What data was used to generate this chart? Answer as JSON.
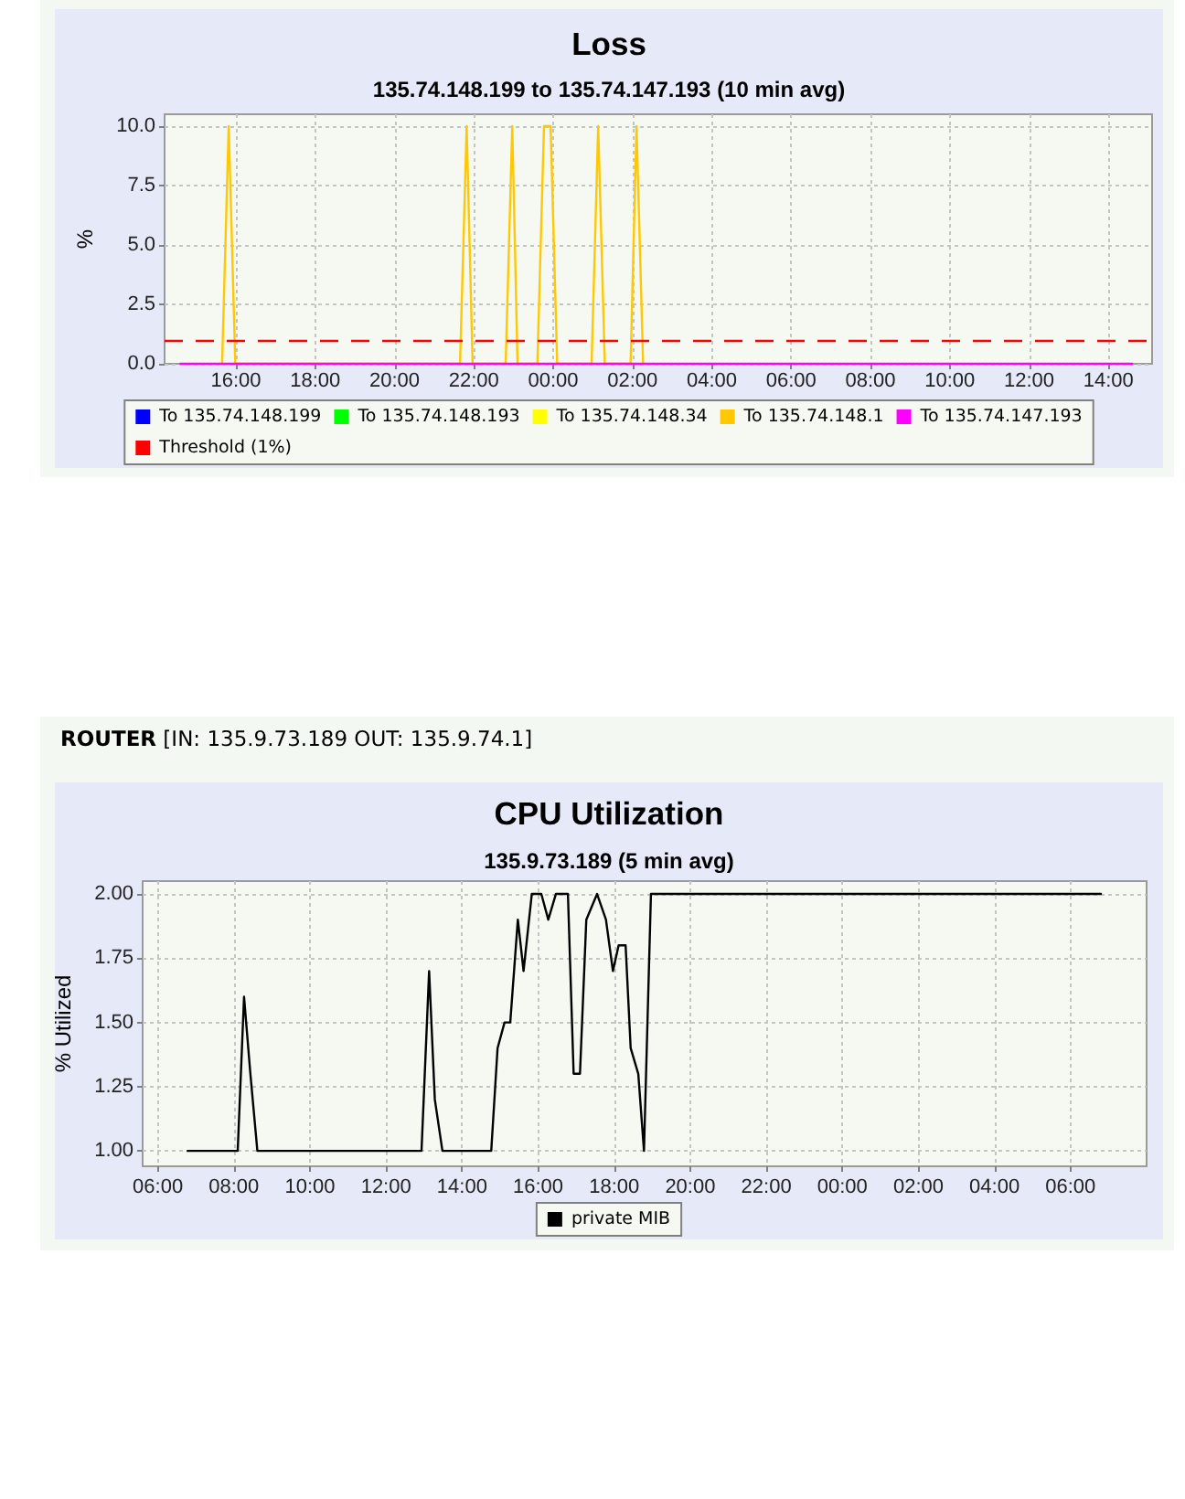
{
  "chart_data": [
    {
      "type": "line",
      "title": "Loss",
      "subtitle": "135.74.148.199 to 135.74.147.193 (10 min avg)",
      "ylabel": "%",
      "xlim": [
        "--01-01T14:12",
        "--01-02T15:06"
      ],
      "xticks": [
        {
          "value": "--01-01T16:00",
          "label": "16:00"
        },
        {
          "value": "--01-01T18:00",
          "label": "18:00"
        },
        {
          "value": "--01-01T20:00",
          "label": "20:00"
        },
        {
          "value": "--01-01T22:00",
          "label": "22:00"
        },
        {
          "value": "--01-02T00:00",
          "label": "00:00"
        },
        {
          "value": "--01-02T02:00",
          "label": "02:00"
        },
        {
          "value": "--01-02T04:00",
          "label": "04:00"
        },
        {
          "value": "--01-02T06:00",
          "label": "06:00"
        },
        {
          "value": "--01-02T08:00",
          "label": "08:00"
        },
        {
          "value": "--01-02T10:00",
          "label": "10:00"
        },
        {
          "value": "--01-02T12:00",
          "label": "12:00"
        },
        {
          "value": "--01-02T14:00",
          "label": "14:00"
        }
      ],
      "ylim": [
        0,
        10.5
      ],
      "yticks": [
        {
          "value": 0,
          "label": "0.0"
        },
        {
          "value": 2.5,
          "label": "2.5"
        },
        {
          "value": 5,
          "label": "5.0"
        },
        {
          "value": 7.5,
          "label": "7.5"
        },
        {
          "value": 10,
          "label": "10.0"
        }
      ],
      "series": [
        {
          "name": "To 135.74.148.199",
          "color": "#0000ff"
        },
        {
          "name": "To 135.74.148.193",
          "color": "#00ff00"
        },
        {
          "name": "To 135.74.148.34",
          "color": "#ffff00"
        },
        {
          "name": "To 135.74.148.1",
          "color": "#ffc800",
          "x": [
            "--01-01T15:39",
            "--01-01T15:49",
            "--01-01T15:59",
            "--01-01T21:39",
            "--01-01T21:49",
            "--01-01T21:58",
            "--01-01T22:48",
            "--01-01T22:58",
            "--01-01T23:06",
            "--01-01T23:36",
            "--01-01T23:46",
            "--01-01T23:56",
            "--01-02T00:06",
            "--01-02T00:58",
            "--01-02T01:08",
            "--01-02T01:18",
            "--01-02T01:57",
            "--01-02T02:06",
            "--01-02T02:16"
          ],
          "values": [
            0,
            10,
            0,
            0,
            10,
            0,
            0,
            10,
            0,
            0,
            10,
            10,
            0,
            0,
            10,
            0,
            0,
            10,
            0
          ]
        },
        {
          "name": "To 135.74.147.193",
          "color": "#ff00ff",
          "x": [
            "--01-01T14:36",
            "--01-02T14:36"
          ],
          "values": [
            0,
            0
          ]
        }
      ],
      "ref_lines": [
        {
          "axis": "y",
          "value": 1,
          "label": "Threshold (1%)",
          "color": "#ff0000",
          "line_style": "dashed"
        }
      ],
      "grid": true,
      "legend": "bottom",
      "marker": "none",
      "line_style": "solid"
    },
    {
      "type": "line",
      "title": "CPU Utilization",
      "subtitle": "135.9.73.189 (5 min avg)",
      "ylabel": "% Utilized",
      "annotations": [
        "ROUTER [IN: 135.9.73.189 OUT: 135.9.74.1]"
      ],
      "xlim": [
        "--01-01T05:36",
        "--01-02T08:00"
      ],
      "xticks": [
        {
          "value": "--01-01T06:00",
          "label": "06:00"
        },
        {
          "value": "--01-01T08:00",
          "label": "08:00"
        },
        {
          "value": "--01-01T10:00",
          "label": "10:00"
        },
        {
          "value": "--01-01T12:00",
          "label": "12:00"
        },
        {
          "value": "--01-01T14:00",
          "label": "14:00"
        },
        {
          "value": "--01-01T16:00",
          "label": "16:00"
        },
        {
          "value": "--01-01T18:00",
          "label": "18:00"
        },
        {
          "value": "--01-01T20:00",
          "label": "20:00"
        },
        {
          "value": "--01-01T22:00",
          "label": "22:00"
        },
        {
          "value": "--01-02T00:00",
          "label": "00:00"
        },
        {
          "value": "--01-02T02:00",
          "label": "02:00"
        },
        {
          "value": "--01-02T04:00",
          "label": "04:00"
        },
        {
          "value": "--01-02T06:00",
          "label": "06:00"
        }
      ],
      "ylim": [
        0.94,
        2.05
      ],
      "yticks": [
        {
          "value": 1,
          "label": "1.00"
        },
        {
          "value": 1.25,
          "label": "1.25"
        },
        {
          "value": 1.5,
          "label": "1.50"
        },
        {
          "value": 1.75,
          "label": "1.75"
        },
        {
          "value": 2,
          "label": "2.00"
        }
      ],
      "series": [
        {
          "name": "private MIB",
          "color": "#000000",
          "x": [
            "--01-01T06:47",
            "--01-01T08:06",
            "--01-01T08:16",
            "--01-01T08:26",
            "--01-01T08:37",
            "--01-01T12:56",
            "--01-01T13:08",
            "--01-01T13:17",
            "--01-01T13:29",
            "--01-01T14:46",
            "--01-01T14:56",
            "--01-01T15:07",
            "--01-01T15:16",
            "--01-01T15:28",
            "--01-01T15:37",
            "--01-01T15:50",
            "--01-01T16:05",
            "--01-01T16:16",
            "--01-01T16:28",
            "--01-01T16:47",
            "--01-01T16:56",
            "--01-01T17:06",
            "--01-01T17:16",
            "--01-01T17:33",
            "--01-01T17:47",
            "--01-01T17:58",
            "--01-01T18:07",
            "--01-01T18:18",
            "--01-01T18:26",
            "--01-01T18:38",
            "--01-01T18:47",
            "--01-01T18:58",
            "--01-02T06:48"
          ],
          "values": [
            1,
            1,
            1.6,
            1.3,
            1,
            1,
            1.7,
            1.2,
            1,
            1,
            1.4,
            1.5,
            1.5,
            1.9,
            1.7,
            2,
            2,
            1.9,
            2,
            2,
            1.3,
            1.3,
            1.9,
            2,
            1.9,
            1.7,
            1.8,
            1.8,
            1.4,
            1.3,
            1,
            2,
            2
          ]
        }
      ],
      "grid": true,
      "legend": "bottom",
      "marker": "none",
      "line_style": "solid"
    }
  ]
}
